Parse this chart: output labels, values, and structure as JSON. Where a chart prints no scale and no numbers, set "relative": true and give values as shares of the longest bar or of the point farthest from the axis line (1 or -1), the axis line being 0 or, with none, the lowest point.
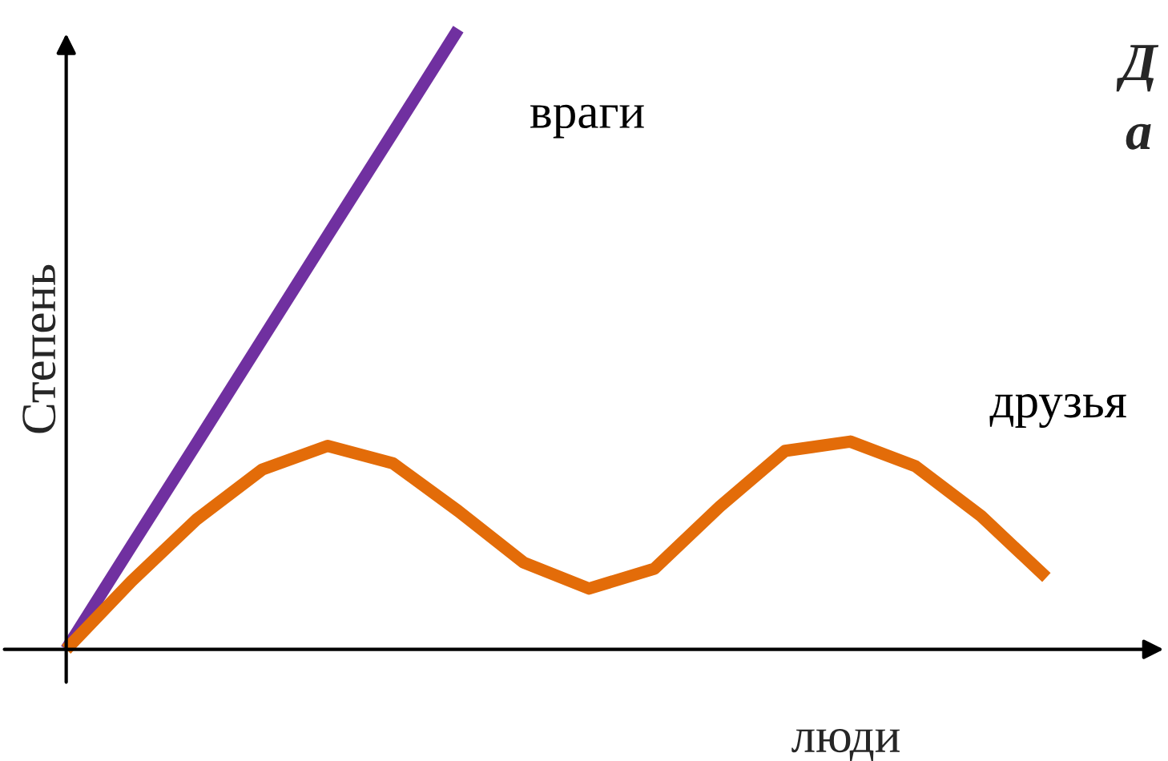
{
  "chart_data": {
    "type": "line",
    "relative": true,
    "xlabel": "люди",
    "ylabel": "Степень",
    "annotations": [
      "Д",
      "а"
    ],
    "categories": [
      null,
      null,
      null,
      null,
      null,
      null,
      null,
      null,
      null,
      null,
      null,
      null,
      null,
      null,
      null,
      null
    ],
    "series": [
      {
        "name": "враги",
        "color": "#7030a0",
        "values": [
          0,
          0.167,
          0.333,
          0.5,
          0.667,
          0.833,
          1,
          null,
          null,
          null,
          null,
          null,
          null,
          null,
          null,
          null
        ]
      },
      {
        "name": "друзья",
        "color": "#e36c09",
        "values": [
          0,
          0.11,
          0.21,
          0.29,
          0.328,
          0.3,
          0.223,
          0.14,
          0.098,
          0.13,
          0.23,
          0.32,
          0.335,
          0.295,
          0.215,
          0.116
        ]
      }
    ]
  }
}
